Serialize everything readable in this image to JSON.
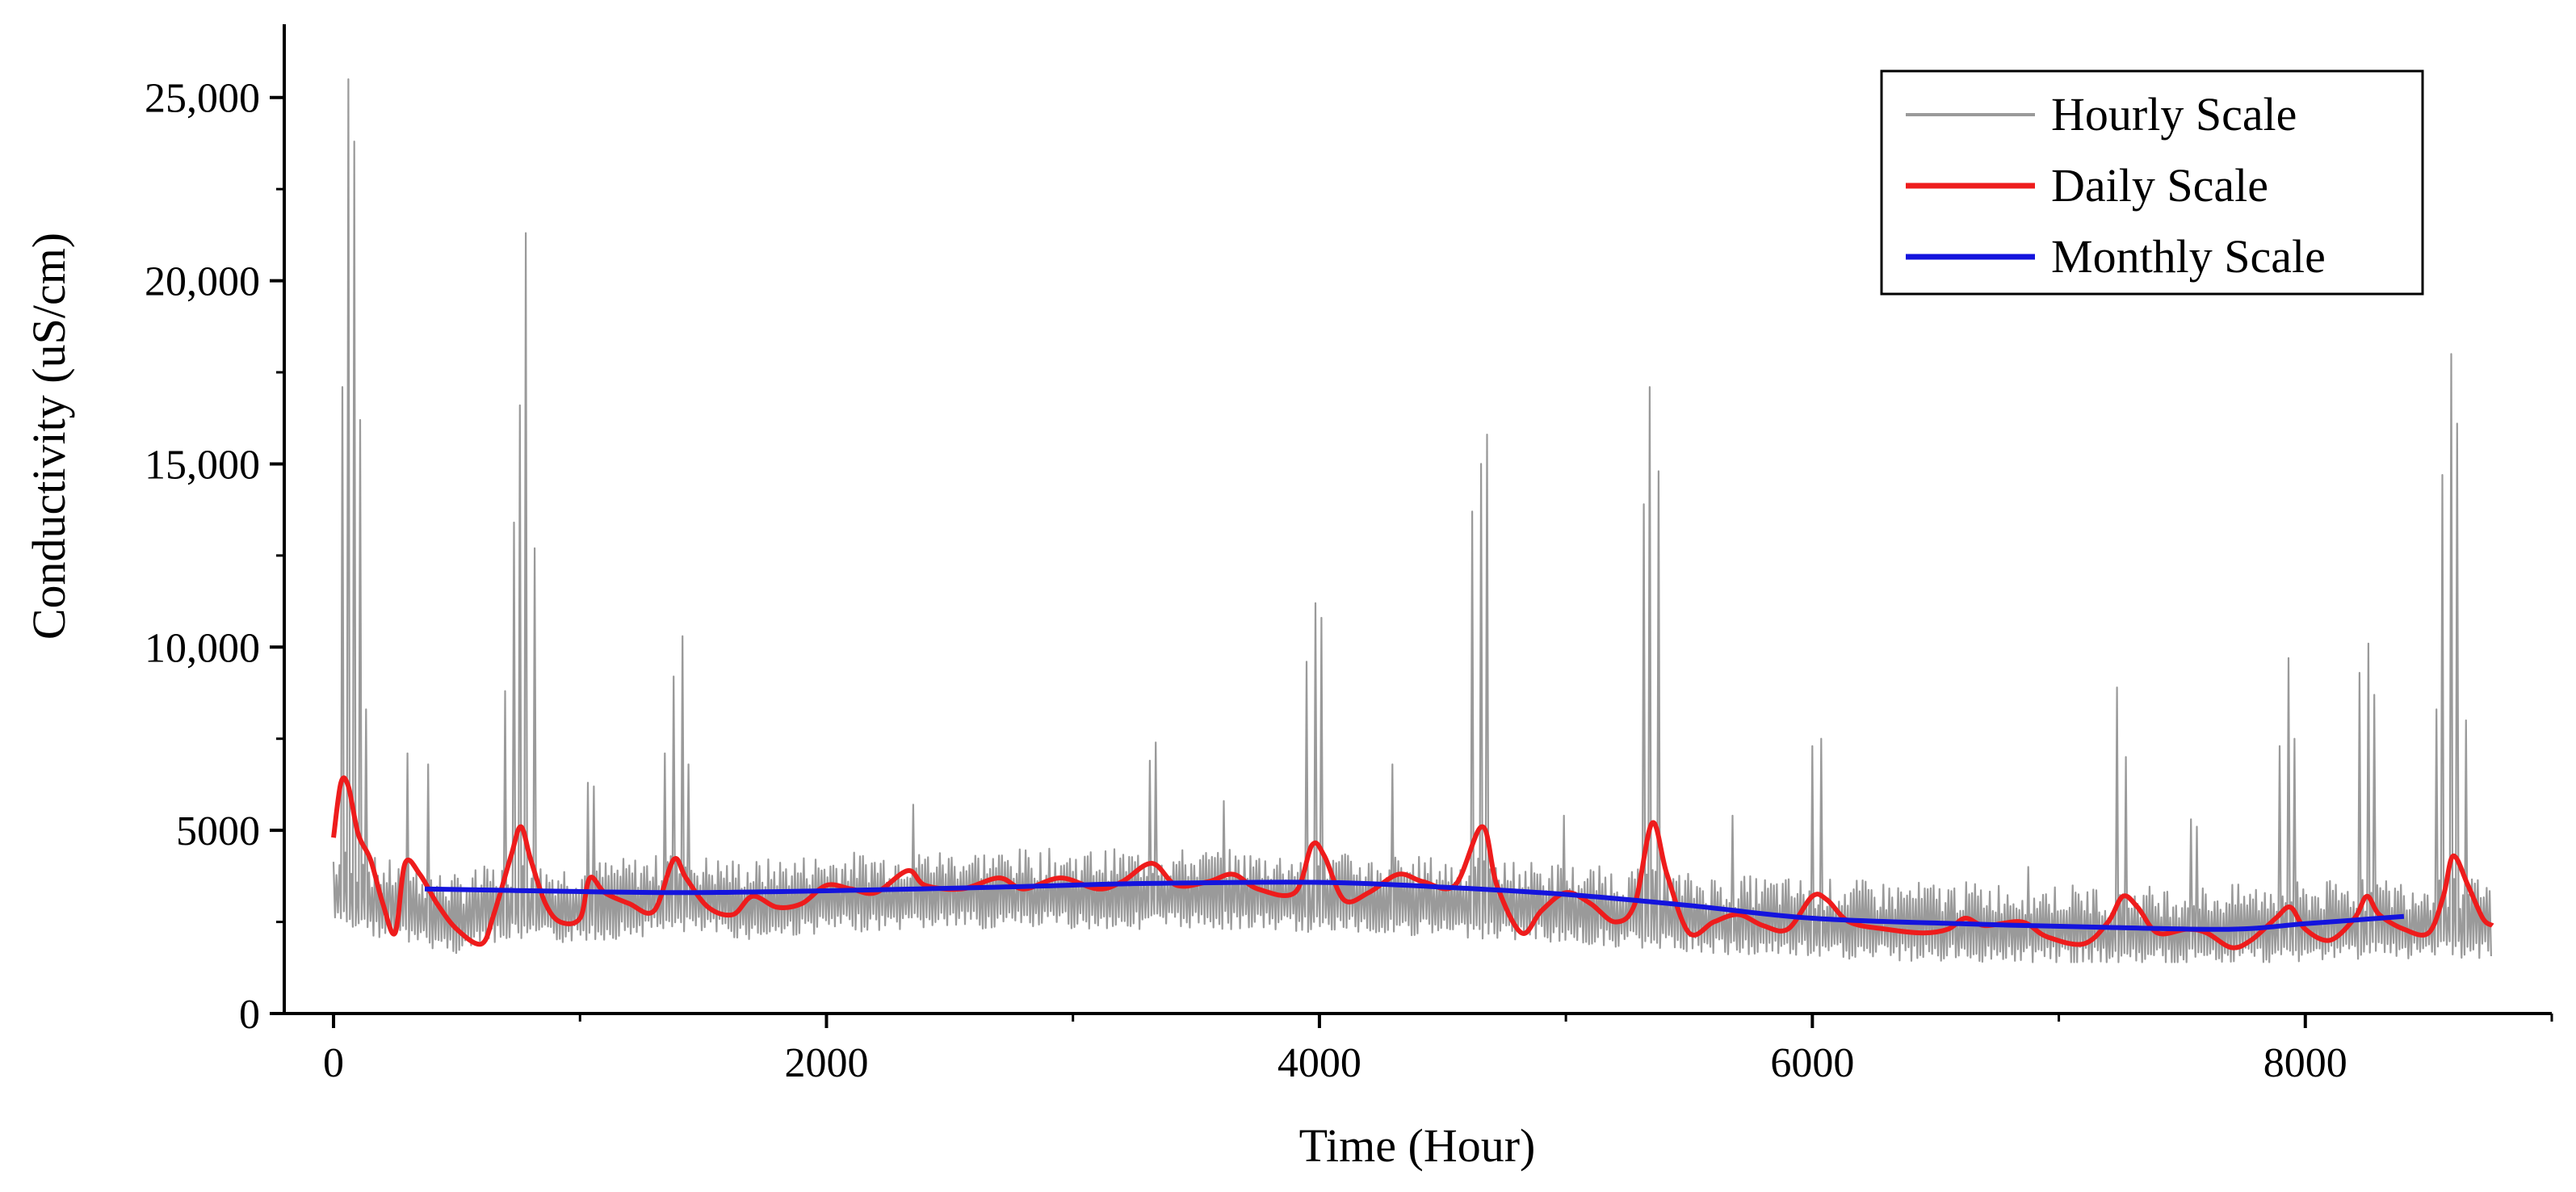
{
  "chart_data": {
    "type": "line",
    "title": "",
    "xlabel": "Time (Hour)",
    "ylabel": "Conductivity (uS/cm)",
    "xlim": [
      -200,
      9000
    ],
    "ylim": [
      0,
      27000
    ],
    "x_ticks": [
      0,
      2000,
      4000,
      6000,
      8000
    ],
    "x_tick_labels": [
      "0",
      "2000",
      "4000",
      "6000",
      "8000"
    ],
    "y_ticks": [
      0,
      5000,
      10000,
      15000,
      20000,
      25000
    ],
    "y_tick_labels": [
      "0",
      "5000",
      "10,000",
      "15,000",
      "20,000",
      "25,000"
    ],
    "legend_position": "top-right",
    "series": [
      {
        "name": "Hourly Scale",
        "color": "#9a9a9a",
        "style": "oscillating",
        "baseline_points": [
          [
            0,
            3400
          ],
          [
            150,
            3100
          ],
          [
            300,
            2900
          ],
          [
            500,
            2600
          ],
          [
            700,
            3000
          ],
          [
            900,
            2900
          ],
          [
            1100,
            3000
          ],
          [
            1400,
            3200
          ],
          [
            1700,
            3000
          ],
          [
            2000,
            3200
          ],
          [
            2400,
            3300
          ],
          [
            2800,
            3300
          ],
          [
            3200,
            3300
          ],
          [
            3600,
            3300
          ],
          [
            4000,
            3200
          ],
          [
            4400,
            3100
          ],
          [
            4800,
            3000
          ],
          [
            5200,
            2800
          ],
          [
            5600,
            2600
          ],
          [
            6000,
            2500
          ],
          [
            6400,
            2400
          ],
          [
            6800,
            2400
          ],
          [
            7200,
            2300
          ],
          [
            7600,
            2300
          ],
          [
            8000,
            2400
          ],
          [
            8400,
            2500
          ],
          [
            8750,
            2500
          ]
        ],
        "spikes": [
          [
            30,
            17100
          ],
          [
            55,
            25500
          ],
          [
            80,
            23800
          ],
          [
            105,
            16200
          ],
          [
            130,
            8300
          ],
          [
            300,
            7100
          ],
          [
            380,
            6800
          ],
          [
            700,
            8800
          ],
          [
            735,
            13400
          ],
          [
            760,
            16600
          ],
          [
            785,
            21300
          ],
          [
            815,
            12700
          ],
          [
            1030,
            6300
          ],
          [
            1060,
            6200
          ],
          [
            1340,
            7100
          ],
          [
            1375,
            9200
          ],
          [
            1410,
            10300
          ],
          [
            1440,
            6800
          ],
          [
            2350,
            5700
          ],
          [
            3310,
            6900
          ],
          [
            3340,
            7400
          ],
          [
            3610,
            5800
          ],
          [
            3950,
            9600
          ],
          [
            3980,
            11200
          ],
          [
            4010,
            10800
          ],
          [
            4290,
            6800
          ],
          [
            4620,
            13700
          ],
          [
            4650,
            15000
          ],
          [
            4680,
            15800
          ],
          [
            4990,
            5400
          ],
          [
            5310,
            13900
          ],
          [
            5345,
            17100
          ],
          [
            5375,
            14800
          ],
          [
            5670,
            5400
          ],
          [
            6000,
            7300
          ],
          [
            6030,
            7500
          ],
          [
            6870,
            4000
          ],
          [
            7240,
            8900
          ],
          [
            7270,
            7000
          ],
          [
            7530,
            5300
          ],
          [
            7560,
            5100
          ],
          [
            7900,
            7300
          ],
          [
            7930,
            9700
          ],
          [
            7960,
            7500
          ],
          [
            8220,
            9300
          ],
          [
            8250,
            10100
          ],
          [
            8280,
            8700
          ],
          [
            8530,
            8300
          ],
          [
            8560,
            14700
          ],
          [
            8590,
            18000
          ],
          [
            8620,
            16100
          ],
          [
            8650,
            8000
          ]
        ]
      },
      {
        "name": "Daily Scale",
        "color": "#ee1c1c",
        "points": [
          [
            0,
            4800
          ],
          [
            30,
            6300
          ],
          [
            60,
            6200
          ],
          [
            100,
            4900
          ],
          [
            150,
            4200
          ],
          [
            200,
            3000
          ],
          [
            250,
            2200
          ],
          [
            290,
            4100
          ],
          [
            350,
            3800
          ],
          [
            420,
            3000
          ],
          [
            500,
            2300
          ],
          [
            600,
            1900
          ],
          [
            650,
            2700
          ],
          [
            720,
            4300
          ],
          [
            760,
            5100
          ],
          [
            800,
            4200
          ],
          [
            860,
            3000
          ],
          [
            920,
            2500
          ],
          [
            1000,
            2600
          ],
          [
            1040,
            3700
          ],
          [
            1100,
            3300
          ],
          [
            1200,
            3000
          ],
          [
            1300,
            2800
          ],
          [
            1380,
            4200
          ],
          [
            1430,
            3700
          ],
          [
            1520,
            2900
          ],
          [
            1620,
            2700
          ],
          [
            1700,
            3200
          ],
          [
            1800,
            2900
          ],
          [
            1900,
            3000
          ],
          [
            2000,
            3500
          ],
          [
            2100,
            3400
          ],
          [
            2200,
            3300
          ],
          [
            2330,
            3900
          ],
          [
            2400,
            3500
          ],
          [
            2550,
            3400
          ],
          [
            2700,
            3700
          ],
          [
            2800,
            3400
          ],
          [
            2950,
            3700
          ],
          [
            3100,
            3400
          ],
          [
            3200,
            3600
          ],
          [
            3320,
            4100
          ],
          [
            3420,
            3500
          ],
          [
            3550,
            3600
          ],
          [
            3650,
            3800
          ],
          [
            3750,
            3400
          ],
          [
            3900,
            3300
          ],
          [
            3970,
            4600
          ],
          [
            4020,
            4300
          ],
          [
            4100,
            3100
          ],
          [
            4200,
            3300
          ],
          [
            4320,
            3800
          ],
          [
            4420,
            3600
          ],
          [
            4550,
            3500
          ],
          [
            4660,
            5100
          ],
          [
            4720,
            3500
          ],
          [
            4820,
            2200
          ],
          [
            4900,
            2800
          ],
          [
            5000,
            3300
          ],
          [
            5100,
            3000
          ],
          [
            5200,
            2500
          ],
          [
            5280,
            3000
          ],
          [
            5350,
            5200
          ],
          [
            5410,
            3800
          ],
          [
            5500,
            2200
          ],
          [
            5600,
            2500
          ],
          [
            5700,
            2700
          ],
          [
            5800,
            2400
          ],
          [
            5900,
            2300
          ],
          [
            6000,
            3200
          ],
          [
            6060,
            3100
          ],
          [
            6150,
            2500
          ],
          [
            6300,
            2300
          ],
          [
            6450,
            2200
          ],
          [
            6550,
            2300
          ],
          [
            6620,
            2600
          ],
          [
            6700,
            2400
          ],
          [
            6850,
            2500
          ],
          [
            6950,
            2100
          ],
          [
            7100,
            1900
          ],
          [
            7200,
            2500
          ],
          [
            7260,
            3200
          ],
          [
            7320,
            2900
          ],
          [
            7400,
            2200
          ],
          [
            7520,
            2300
          ],
          [
            7600,
            2200
          ],
          [
            7700,
            1800
          ],
          [
            7780,
            2000
          ],
          [
            7880,
            2600
          ],
          [
            7940,
            2900
          ],
          [
            8000,
            2300
          ],
          [
            8100,
            2000
          ],
          [
            8200,
            2600
          ],
          [
            8250,
            3200
          ],
          [
            8300,
            2700
          ],
          [
            8400,
            2300
          ],
          [
            8500,
            2200
          ],
          [
            8560,
            3200
          ],
          [
            8600,
            4300
          ],
          [
            8660,
            3500
          ],
          [
            8720,
            2600
          ],
          [
            8760,
            2400
          ]
        ]
      },
      {
        "name": "Monthly Scale",
        "color": "#1414dd",
        "points": [
          [
            370,
            3400
          ],
          [
            800,
            3350
          ],
          [
            1400,
            3300
          ],
          [
            2000,
            3350
          ],
          [
            2700,
            3450
          ],
          [
            3300,
            3550
          ],
          [
            4000,
            3580
          ],
          [
            4500,
            3450
          ],
          [
            5000,
            3250
          ],
          [
            5500,
            2950
          ],
          [
            6000,
            2600
          ],
          [
            6600,
            2450
          ],
          [
            7200,
            2350
          ],
          [
            7700,
            2300
          ],
          [
            8000,
            2450
          ],
          [
            8400,
            2650
          ]
        ]
      }
    ]
  }
}
